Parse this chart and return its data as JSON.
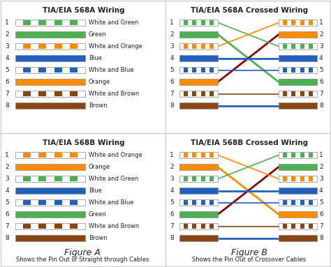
{
  "bg_color": "#ffffff",
  "border_color": "#cccccc",
  "title_568A": "TIA/EIA 568A Wiring",
  "title_568B": "TIA/EIA 568B Wiring",
  "title_568A_cross": "TIA/EIA 568A Crossed Wiring",
  "title_568B_cross": "TIA/EIA 568B Crossed Wiring",
  "fig_a": "Figure A",
  "fig_b": "Figure B",
  "caption_a": "Shows the Pin Out of Straight through Cables",
  "caption_b": "Shows the Pin Out of Crossover Cables",
  "labels_568A": [
    "White and Green",
    "Green",
    "White and Orange",
    "Blue",
    "White and Blue",
    "Orange",
    "White and Brown",
    "Brown"
  ],
  "labels_568B": [
    "White and Orange",
    "Orange",
    "White and Green",
    "Blue",
    "White and Blue",
    "Green",
    "White and Brown",
    "Brown"
  ],
  "colors_568A": [
    "#4caf50",
    "#4caf50",
    "#ff8c00",
    "#2060c0",
    "#2060c0",
    "#ff8c00",
    "#8b4513",
    "#8b4513"
  ],
  "stripes_568A": [
    true,
    false,
    true,
    false,
    true,
    false,
    true,
    false
  ],
  "colors_568B": [
    "#ff8c00",
    "#ff8c00",
    "#4caf50",
    "#2060c0",
    "#2060c0",
    "#4caf50",
    "#8b4513",
    "#8b4513"
  ],
  "stripes_568B": [
    true,
    false,
    true,
    false,
    true,
    false,
    true,
    false
  ],
  "cross_map": [
    3,
    6,
    1,
    4,
    5,
    2,
    7,
    8
  ],
  "cross_line_colors_568A": [
    "#4caf50",
    "#4caf50",
    "#ff8c00",
    "#2060c0",
    "#2060c0",
    "#8b0000",
    "#8b4513",
    "#2060c0"
  ],
  "cross_line_colors_568B": [
    "#ff8c00",
    "#ff8c00",
    "#4caf50",
    "#2060c0",
    "#2060c0",
    "#8b0000",
    "#8b4513",
    "#2060c0"
  ]
}
